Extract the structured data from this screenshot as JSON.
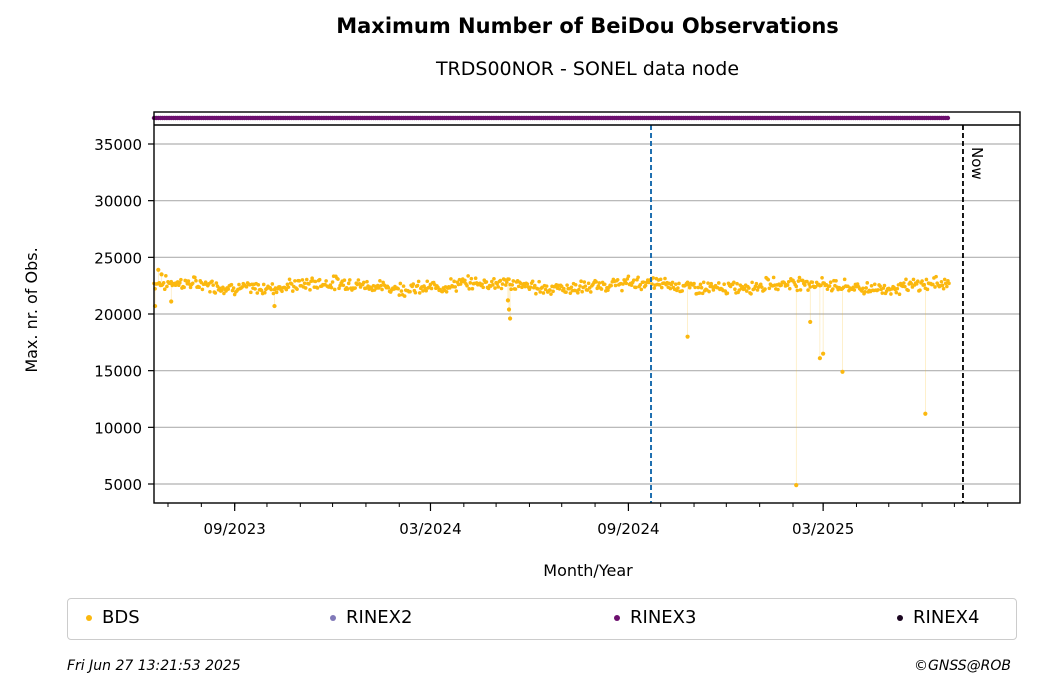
{
  "header": {
    "title": "Maximum Number of BeiDou Observations",
    "subtitle": "TRDS00NOR - SONEL data node"
  },
  "footer": {
    "timestamp": "Fri Jun 27 13:21:53 2025",
    "credit": "©GNSS@ROB"
  },
  "colors": {
    "bds": "#fbb80f",
    "rinex2": "#8079b8",
    "rinex3": "#6c0f6e",
    "rinex4": "#1b0520",
    "event_line": "#1f6fb0",
    "grid": "#b0b0b0"
  },
  "legend": [
    {
      "label": "BDS",
      "color_key": "bds"
    },
    {
      "label": "RINEX2",
      "color_key": "rinex2"
    },
    {
      "label": "RINEX3",
      "color_key": "rinex3"
    },
    {
      "label": "RINEX4",
      "color_key": "rinex4"
    }
  ],
  "chart_data": {
    "type": "scatter",
    "title": "Maximum Number of BeiDou Observations",
    "subtitle": "TRDS00NOR - SONEL data node",
    "xlabel": "Month/Year",
    "ylabel": "Max. nr. of Obs.",
    "x_range": [
      "2023-06-18",
      "2025-08-31"
    ],
    "ylim": [
      3500,
      37000
    ],
    "yticks": [
      5000,
      10000,
      15000,
      20000,
      25000,
      30000,
      35000
    ],
    "x_tick_labels": [
      {
        "date": "2023-09-01",
        "label": "09/2023"
      },
      {
        "date": "2024-03-01",
        "label": "03/2024"
      },
      {
        "date": "2024-09-01",
        "label": "09/2024"
      },
      {
        "date": "2025-03-01",
        "label": "03/2025"
      }
    ],
    "grid": "horizontal",
    "legend_position": "below",
    "rinex_bar": {
      "series": "RINEX3",
      "start": "2023-06-18",
      "end": "2025-06-26"
    },
    "event_line": {
      "date": "2024-09-22"
    },
    "now_line": {
      "date": "2025-07-09",
      "label": "Now"
    },
    "series": [
      {
        "name": "BDS",
        "baseline": {
          "start": "2023-06-18",
          "end": "2025-06-26",
          "value": 22500,
          "spread": 700
        },
        "points": [
          {
            "x": "2023-06-19",
            "y": 20700
          },
          {
            "x": "2023-06-22",
            "y": 23900
          },
          {
            "x": "2023-06-25",
            "y": 23500
          },
          {
            "x": "2023-07-04",
            "y": 21100
          },
          {
            "x": "2023-10-08",
            "y": 20700
          },
          {
            "x": "2024-05-12",
            "y": 21200
          },
          {
            "x": "2024-05-13",
            "y": 20400
          },
          {
            "x": "2024-05-14",
            "y": 19600
          },
          {
            "x": "2024-10-26",
            "y": 18000
          },
          {
            "x": "2025-02-04",
            "y": 4900
          },
          {
            "x": "2025-02-17",
            "y": 19300
          },
          {
            "x": "2025-02-26",
            "y": 16100
          },
          {
            "x": "2025-03-01",
            "y": 16500
          },
          {
            "x": "2025-03-19",
            "y": 14900
          },
          {
            "x": "2025-06-04",
            "y": 11200
          }
        ]
      }
    ]
  }
}
